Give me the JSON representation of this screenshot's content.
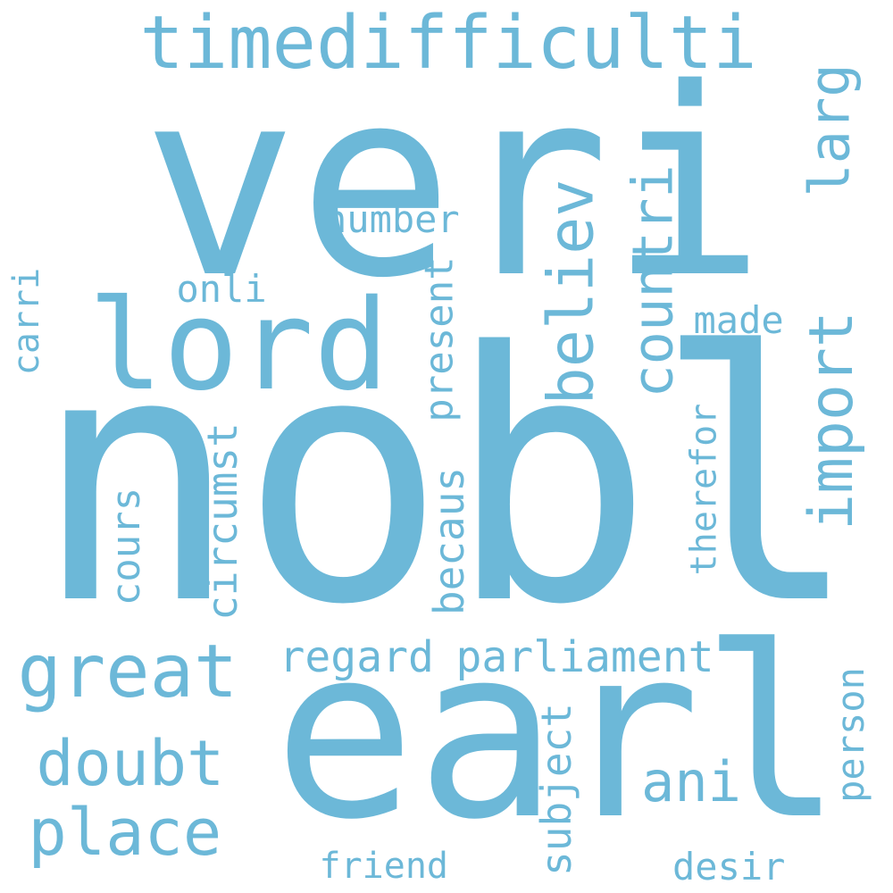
{
  "color": "#6cb8d8",
  "words": [
    {
      "text": "veri"
    },
    {
      "text": "nobl"
    },
    {
      "text": "earl"
    },
    {
      "text": "lord"
    },
    {
      "text": "timedifficulti"
    },
    {
      "text": "great"
    },
    {
      "text": "doubt"
    },
    {
      "text": "place"
    },
    {
      "text": "friend"
    },
    {
      "text": "regard"
    },
    {
      "text": "parliament"
    },
    {
      "text": "number"
    },
    {
      "text": "onli"
    },
    {
      "text": "made"
    },
    {
      "text": "ani"
    },
    {
      "text": "desir"
    },
    {
      "text": "believ"
    },
    {
      "text": "countri"
    },
    {
      "text": "import"
    },
    {
      "text": "larg"
    },
    {
      "text": "carri"
    },
    {
      "text": "cours"
    },
    {
      "text": "circumst"
    },
    {
      "text": "becaus"
    },
    {
      "text": "present"
    },
    {
      "text": "therefor"
    },
    {
      "text": "subject"
    },
    {
      "text": "person"
    }
  ]
}
